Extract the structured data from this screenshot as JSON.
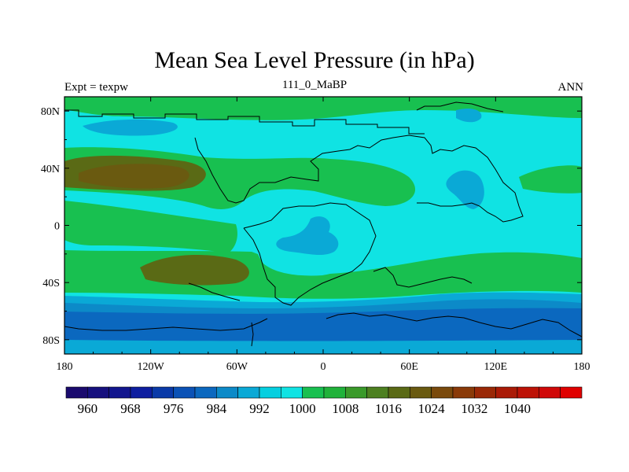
{
  "chart_data": {
    "type": "contour-map",
    "title": "Mean Sea Level Pressure (in hPa)",
    "left_label": "Expt = texpw",
    "center_label": "111_0_MaBP",
    "right_label": "ANN",
    "x_ticks": [
      "180",
      "120W",
      "60W",
      "0",
      "60E",
      "120E",
      "180"
    ],
    "x_values": [
      -180,
      -120,
      -60,
      0,
      60,
      120,
      180
    ],
    "y_ticks": [
      "80N",
      "40N",
      "0",
      "40S",
      "80S"
    ],
    "y_values": [
      80,
      40,
      0,
      -40,
      -80
    ],
    "xlim": [
      -180,
      180
    ],
    "ylim": [
      -90,
      90
    ],
    "colorbar": {
      "levels": [
        "960",
        "968",
        "976",
        "984",
        "992",
        "1000",
        "1008",
        "1016",
        "1024",
        "1032",
        "1040"
      ],
      "level_values": [
        960,
        968,
        976,
        984,
        992,
        1000,
        1008,
        1016,
        1024,
        1032,
        1040
      ],
      "colors": [
        "#1a0a6e",
        "#16107e",
        "#12168e",
        "#0e1ea0",
        "#0a3aa8",
        "#0b52b6",
        "#0b68bf",
        "#0c8ac8",
        "#0aa9d6",
        "#05cfe0",
        "#10e3e3",
        "#18c050",
        "#20b23a",
        "#3a9a2a",
        "#4d8020",
        "#5a6a15",
        "#6a5a10",
        "#7a4a0c",
        "#8a3a08",
        "#9a2806",
        "#aa1a06",
        "#bd1206",
        "#d00808",
        "#e00000"
      ]
    }
  }
}
